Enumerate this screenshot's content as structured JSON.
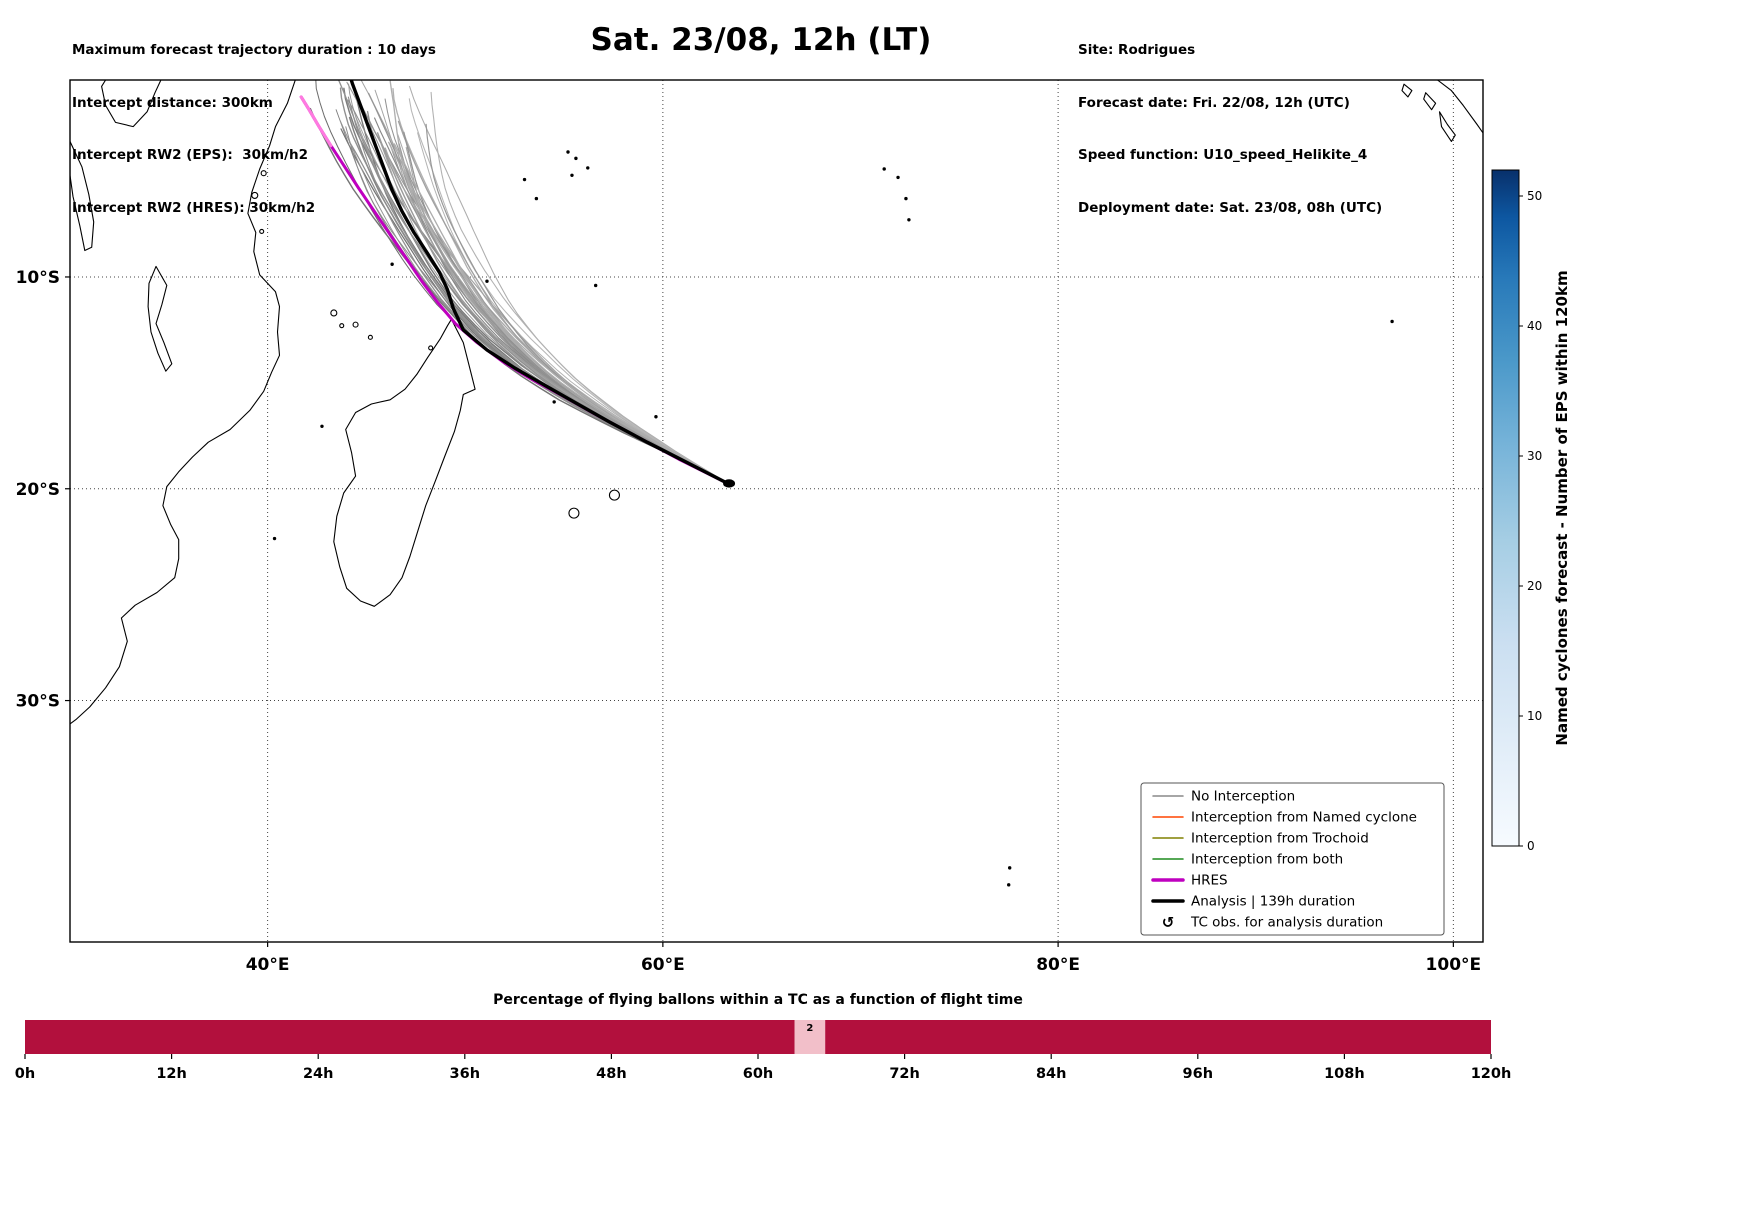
{
  "header": {
    "left_lines": [
      "Maximum forecast trajectory duration : 10 days",
      "Intercept distance: 300km",
      "Intercept RW2 (EPS):  30km/h2",
      "Intercept RW2 (HRES): 30km/h2"
    ],
    "title": "Sat. 23/08, 12h (LT)",
    "right_lines": [
      "Site: Rodrigues",
      "Forecast date: Fri. 22/08, 12h (UTC)",
      "Speed function: U10_speed_Helikite_4",
      "Deployment date: Sat. 23/08, 08h (UTC)"
    ]
  },
  "legend": {
    "items": [
      {
        "label": "No Interception",
        "type": "line",
        "color": "#888888",
        "width": 1.5
      },
      {
        "label": "Interception from Named cyclone",
        "type": "line",
        "color": "#ff4500",
        "width": 1.5
      },
      {
        "label": "Interception from Trochoid",
        "type": "line",
        "color": "#808000",
        "width": 1.5
      },
      {
        "label": "Interception from both",
        "type": "line",
        "color": "#1e8b1e",
        "width": 1.5
      },
      {
        "label": "HRES",
        "type": "line",
        "color": "#bf00bf",
        "width": 3.5
      },
      {
        "label": "Analysis | 139h duration",
        "type": "line",
        "color": "#000000",
        "width": 3.5
      },
      {
        "label": "TC obs. for analysis duration",
        "type": "symbol",
        "symbol": "↺",
        "color": "#000000"
      }
    ]
  },
  "colorbar": {
    "label": "Named cyclones forecast - Number of EPS within 120km",
    "ticks": [
      0,
      10,
      20,
      30,
      40,
      50
    ],
    "vmin": 0,
    "vmax": 52,
    "stops": [
      {
        "p": 0.0,
        "c": "#f7fbff"
      },
      {
        "p": 0.15,
        "c": "#e1edf8"
      },
      {
        "p": 0.3,
        "c": "#cbdff1"
      },
      {
        "p": 0.45,
        "c": "#a6cee4"
      },
      {
        "p": 0.6,
        "c": "#74b2d8"
      },
      {
        "p": 0.72,
        "c": "#4a98c9"
      },
      {
        "p": 0.84,
        "c": "#2879b9"
      },
      {
        "p": 0.93,
        "c": "#0d57a1"
      },
      {
        "p": 1.0,
        "c": "#08306b"
      }
    ]
  },
  "chart_data": [
    {
      "type": "line",
      "title": "Sat. 23/08, 12h (LT)",
      "xlabel": "",
      "ylabel": "",
      "lon_range": [
        30.0,
        101.5
      ],
      "lat_range": [
        -41.4,
        -0.7
      ],
      "grid": "dotted",
      "xticks": [
        {
          "value": 40,
          "label": "40°E"
        },
        {
          "value": 60,
          "label": "60°E"
        },
        {
          "value": 80,
          "label": "80°E"
        },
        {
          "value": 100,
          "label": "100°E"
        }
      ],
      "yticks": [
        {
          "value": -10,
          "label": "10°S"
        },
        {
          "value": -20,
          "label": "20°S"
        },
        {
          "value": -30,
          "label": "30°S"
        }
      ],
      "deployment_point": {
        "lon": 63.35,
        "lat": -19.75,
        "site": "Rodrigues"
      },
      "analysis_track": {
        "color": "#000000",
        "width": 3.4,
        "points": [
          [
            63.35,
            -19.78
          ],
          [
            61.2,
            -18.75
          ],
          [
            59.2,
            -17.8
          ],
          [
            57.3,
            -16.85
          ],
          [
            55.6,
            -15.95
          ],
          [
            54.0,
            -15.1
          ],
          [
            52.5,
            -14.3
          ],
          [
            51.1,
            -13.45
          ],
          [
            49.9,
            -12.5
          ],
          [
            49.4,
            -11.5
          ],
          [
            49.1,
            -10.6
          ],
          [
            48.7,
            -9.8
          ],
          [
            48.1,
            -8.9
          ],
          [
            47.4,
            -7.9
          ],
          [
            46.8,
            -6.9
          ],
          [
            46.3,
            -5.9
          ],
          [
            45.9,
            -4.9
          ],
          [
            45.5,
            -3.9
          ],
          [
            45.1,
            -2.9
          ],
          [
            44.7,
            -1.9
          ],
          [
            44.3,
            -0.9
          ],
          [
            44.1,
            -0.3
          ]
        ]
      },
      "hres_track": {
        "color": "#bf00bf",
        "tip_color": "#ff7ae0",
        "width": 3.0,
        "points": [
          [
            63.35,
            -19.78
          ],
          [
            60.8,
            -18.6
          ],
          [
            58.6,
            -17.5
          ],
          [
            56.6,
            -16.5
          ],
          [
            54.9,
            -15.6
          ],
          [
            53.3,
            -14.8
          ],
          [
            51.9,
            -14.0
          ],
          [
            50.6,
            -13.1
          ],
          [
            49.5,
            -12.2
          ],
          [
            48.6,
            -11.2
          ],
          [
            47.8,
            -10.2
          ],
          [
            47.0,
            -9.1
          ],
          [
            46.2,
            -8.0
          ],
          [
            45.4,
            -6.9
          ],
          [
            44.6,
            -5.8
          ],
          [
            43.9,
            -4.8
          ],
          [
            43.2,
            -3.8
          ],
          [
            42.6,
            -2.9
          ],
          [
            42.1,
            -2.1
          ],
          [
            41.7,
            -1.5
          ]
        ]
      },
      "ensemble": {
        "count": 46,
        "seed": 20230823,
        "segments": 30,
        "west_path": [
          [
            63.35,
            -19.78
          ],
          [
            60.6,
            -18.5
          ],
          [
            57.6,
            -17.2
          ],
          [
            54.6,
            -15.8
          ],
          [
            51.9,
            -14.3
          ],
          [
            49.8,
            -12.8
          ],
          [
            48.1,
            -11.2
          ],
          [
            46.7,
            -9.6
          ],
          [
            45.4,
            -7.9
          ],
          [
            44.2,
            -6.2
          ],
          [
            43.2,
            -4.5
          ],
          [
            42.3,
            -2.8
          ],
          [
            41.6,
            -1.2
          ],
          [
            41.2,
            -0.2
          ]
        ],
        "east_path": [
          [
            63.35,
            -19.78
          ],
          [
            60.9,
            -18.3
          ],
          [
            58.6,
            -16.7
          ],
          [
            56.6,
            -15.0
          ],
          [
            55.0,
            -13.2
          ],
          [
            53.6,
            -11.4
          ],
          [
            52.5,
            -9.5
          ],
          [
            51.6,
            -7.6
          ],
          [
            50.9,
            -5.7
          ],
          [
            50.4,
            -3.8
          ],
          [
            50.0,
            -1.9
          ],
          [
            49.8,
            -0.2
          ]
        ]
      },
      "coastlines": {
        "africa_coast": [
          [
            41.4,
            -0.7
          ],
          [
            41.0,
            -1.8
          ],
          [
            40.4,
            -2.9
          ],
          [
            40.1,
            -3.8
          ],
          [
            39.6,
            -4.9
          ],
          [
            39.2,
            -6.0
          ],
          [
            39.0,
            -7.0
          ],
          [
            39.4,
            -7.9
          ],
          [
            39.3,
            -8.8
          ],
          [
            39.6,
            -9.9
          ],
          [
            40.4,
            -10.7
          ],
          [
            40.6,
            -11.4
          ],
          [
            40.5,
            -12.6
          ],
          [
            40.6,
            -13.7
          ],
          [
            40.2,
            -14.5
          ],
          [
            39.8,
            -15.4
          ],
          [
            39.1,
            -16.3
          ],
          [
            38.1,
            -17.2
          ],
          [
            37.0,
            -17.8
          ],
          [
            36.2,
            -18.5
          ],
          [
            35.5,
            -19.2
          ],
          [
            34.9,
            -19.9
          ],
          [
            34.7,
            -20.8
          ],
          [
            35.1,
            -21.7
          ],
          [
            35.5,
            -22.4
          ],
          [
            35.5,
            -23.3
          ],
          [
            35.3,
            -24.2
          ],
          [
            34.4,
            -24.9
          ],
          [
            33.3,
            -25.5
          ],
          [
            32.6,
            -26.1
          ],
          [
            32.9,
            -27.2
          ],
          [
            32.5,
            -28.4
          ],
          [
            31.8,
            -29.4
          ],
          [
            31.0,
            -30.3
          ],
          [
            30.3,
            -30.9
          ],
          [
            30.0,
            -31.1
          ]
        ],
        "madagascar": [
          [
            49.3,
            -12.0
          ],
          [
            49.9,
            -13.1
          ],
          [
            50.2,
            -14.2
          ],
          [
            50.5,
            -15.3
          ],
          [
            49.9,
            -15.55
          ],
          [
            49.75,
            -16.3
          ],
          [
            49.45,
            -17.3
          ],
          [
            48.95,
            -18.5
          ],
          [
            48.5,
            -19.6
          ],
          [
            48.0,
            -20.8
          ],
          [
            47.6,
            -22.0
          ],
          [
            47.2,
            -23.2
          ],
          [
            46.8,
            -24.2
          ],
          [
            46.2,
            -25.0
          ],
          [
            45.4,
            -25.55
          ],
          [
            44.7,
            -25.3
          ],
          [
            44.0,
            -24.7
          ],
          [
            43.65,
            -23.7
          ],
          [
            43.35,
            -22.5
          ],
          [
            43.5,
            -21.3
          ],
          [
            43.85,
            -20.2
          ],
          [
            44.45,
            -19.4
          ],
          [
            44.25,
            -18.3
          ],
          [
            43.95,
            -17.2
          ],
          [
            44.45,
            -16.4
          ],
          [
            45.25,
            -16.0
          ],
          [
            46.2,
            -15.8
          ],
          [
            46.95,
            -15.3
          ],
          [
            47.55,
            -14.6
          ],
          [
            48.1,
            -13.8
          ],
          [
            48.75,
            -12.9
          ],
          [
            49.1,
            -12.3
          ]
        ],
        "lake_victoria": [
          [
            31.8,
            -0.7
          ],
          [
            34.6,
            -0.7
          ],
          [
            34.3,
            -1.3
          ],
          [
            33.9,
            -2.2
          ],
          [
            33.2,
            -2.9
          ],
          [
            32.3,
            -2.7
          ],
          [
            31.8,
            -1.9
          ],
          [
            31.6,
            -1.0
          ]
        ],
        "lake_tanganyika": [
          [
            30.0,
            -3.6
          ],
          [
            30.6,
            -4.8
          ],
          [
            30.95,
            -6.1
          ],
          [
            31.2,
            -7.4
          ],
          [
            31.1,
            -8.6
          ],
          [
            30.75,
            -8.75
          ],
          [
            30.5,
            -7.6
          ],
          [
            30.15,
            -6.2
          ],
          [
            30.0,
            -5.2
          ]
        ],
        "lake_malawi": [
          [
            34.35,
            -9.5
          ],
          [
            34.9,
            -10.4
          ],
          [
            34.65,
            -11.3
          ],
          [
            34.35,
            -12.2
          ],
          [
            34.75,
            -13.1
          ],
          [
            35.15,
            -14.1
          ],
          [
            34.85,
            -14.45
          ],
          [
            34.45,
            -13.6
          ],
          [
            34.1,
            -12.6
          ],
          [
            33.95,
            -11.4
          ],
          [
            34.0,
            -10.3
          ]
        ],
        "sumatra_coast": [
          [
            99.2,
            -0.7
          ],
          [
            99.9,
            -1.2
          ],
          [
            100.5,
            -1.9
          ],
          [
            101.2,
            -2.8
          ],
          [
            101.5,
            -3.2
          ]
        ],
        "small_polys": [
          [
            [
              97.5,
              -0.9
            ],
            [
              97.9,
              -1.2
            ],
            [
              97.7,
              -1.5
            ],
            [
              97.4,
              -1.2
            ]
          ],
          [
            [
              98.6,
              -1.3
            ],
            [
              99.1,
              -1.8
            ],
            [
              98.9,
              -2.1
            ],
            [
              98.5,
              -1.6
            ]
          ],
          [
            [
              99.3,
              -2.2
            ],
            [
              99.7,
              -2.8
            ],
            [
              100.1,
              -3.3
            ],
            [
              99.9,
              -3.6
            ],
            [
              99.4,
              -2.9
            ]
          ]
        ],
        "island_outlines": [
          {
            "lon": 55.5,
            "lat": -21.15,
            "r": 5
          },
          {
            "lon": 57.55,
            "lat": -20.3,
            "r": 5
          },
          {
            "lon": 39.35,
            "lat": -6.15,
            "r": 3
          },
          {
            "lon": 39.8,
            "lat": -5.1,
            "r": 2.5
          },
          {
            "lon": 39.7,
            "lat": -7.85,
            "r": 2
          },
          {
            "lon": 43.35,
            "lat": -11.7,
            "r": 3
          },
          {
            "lon": 44.45,
            "lat": -12.25,
            "r": 2.5
          },
          {
            "lon": 43.75,
            "lat": -12.3,
            "r": 2
          },
          {
            "lon": 45.2,
            "lat": -12.85,
            "r": 2
          },
          {
            "lon": 48.25,
            "lat": -13.35,
            "r": 2
          }
        ],
        "island_dots": [
          [
            55.2,
            -4.1
          ],
          [
            55.6,
            -4.4
          ],
          [
            56.2,
            -4.85
          ],
          [
            55.4,
            -5.2
          ],
          [
            53.0,
            -5.4
          ],
          [
            53.6,
            -6.3
          ],
          [
            51.1,
            -10.2
          ],
          [
            46.3,
            -9.4
          ],
          [
            56.6,
            -10.4
          ],
          [
            54.5,
            -15.9
          ],
          [
            59.65,
            -16.6
          ],
          [
            42.75,
            -17.05
          ],
          [
            40.35,
            -22.35
          ],
          [
            71.2,
            -4.9
          ],
          [
            71.9,
            -5.3
          ],
          [
            72.3,
            -6.3
          ],
          [
            72.45,
            -7.3
          ],
          [
            96.9,
            -12.1
          ],
          [
            77.55,
            -37.9
          ],
          [
            77.5,
            -38.7
          ]
        ]
      }
    },
    {
      "type": "bar",
      "title": "Percentage of flying ballons within a TC as a function of flight time",
      "x_unit": "hours",
      "x_range": [
        0,
        120
      ],
      "xticks": [
        "0h",
        "12h",
        "24h",
        "36h",
        "48h",
        "60h",
        "72h",
        "84h",
        "96h",
        "108h",
        "120h"
      ],
      "series": [
        {
          "name": "percent_in_TC",
          "segments": [
            {
              "from": 0,
              "to": 63,
              "color": "#b2103d"
            },
            {
              "from": 63,
              "to": 65.5,
              "color": "#f2bfc9",
              "label": "2"
            },
            {
              "from": 65.5,
              "to": 120,
              "color": "#b2103d"
            }
          ]
        }
      ]
    }
  ]
}
